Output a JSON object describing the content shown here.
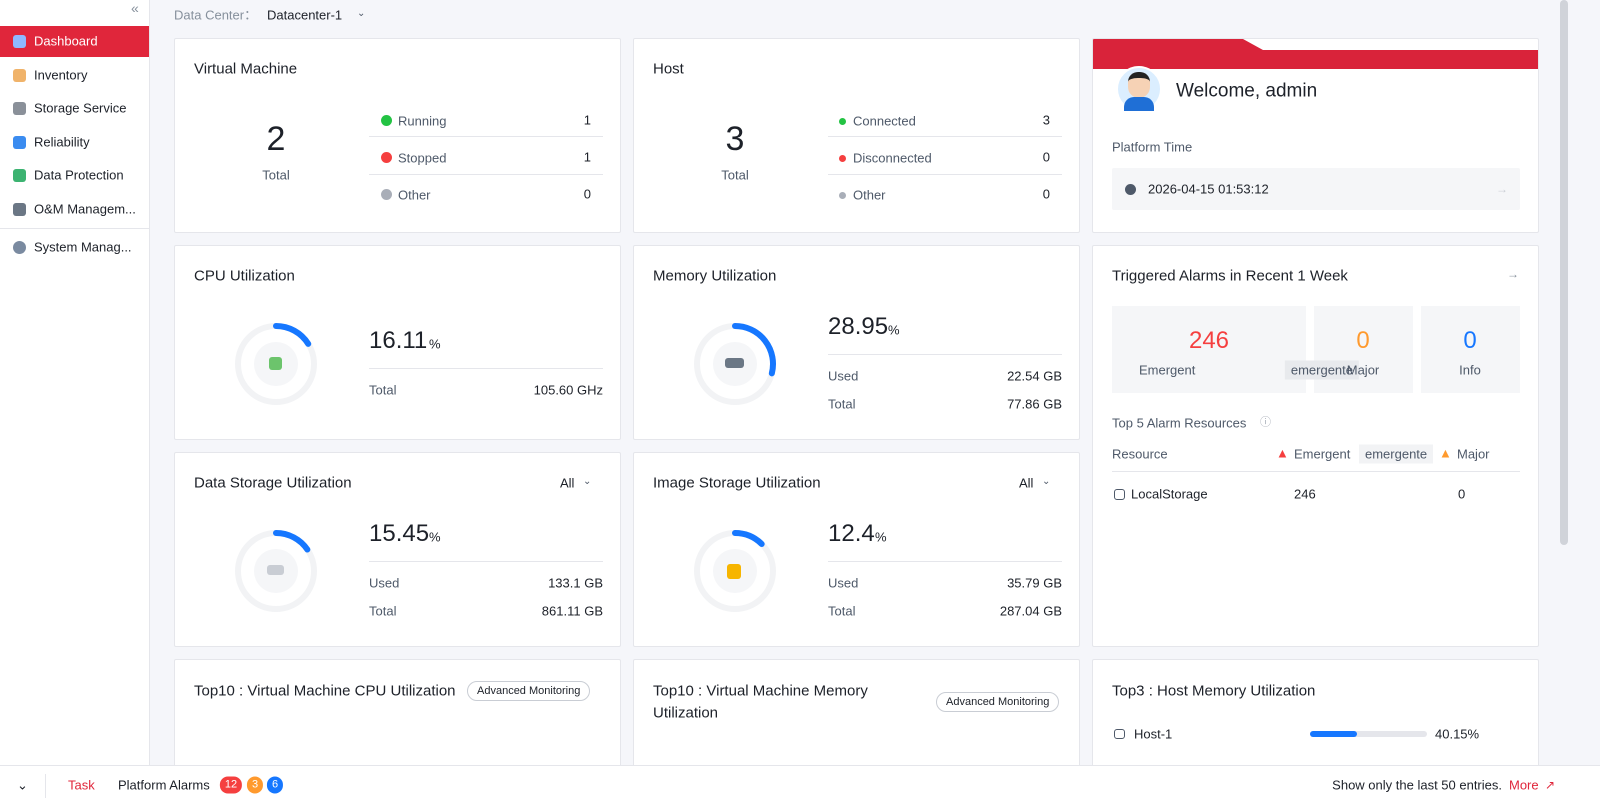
{
  "sidebar": {
    "items": [
      "Dashboard",
      "Inventory",
      "Storage Service",
      "Reliability",
      "Data Protection",
      "O&M Managem...",
      "System Manag..."
    ]
  },
  "header": {
    "label": "Data Center：",
    "value": "Datacenter-1"
  },
  "vm": {
    "title": "Virtual Machine",
    "total": 2,
    "total_label": "Total",
    "rows": [
      {
        "label": "Running",
        "value": 1
      },
      {
        "label": "Stopped",
        "value": 1
      },
      {
        "label": "Other",
        "value": 0
      }
    ]
  },
  "host": {
    "title": "Host",
    "total": 3,
    "total_label": "Total",
    "rows": [
      {
        "label": "Connected",
        "value": 3
      },
      {
        "label": "Disconnected",
        "value": 0
      },
      {
        "label": "Other",
        "value": 0
      }
    ]
  },
  "welcome": {
    "greeting": "Welcome, admin",
    "time_label": "Platform Time",
    "time": "2026-04-15 01:53:12"
  },
  "cpu": {
    "title": "CPU Utilization",
    "percent": 16.11,
    "unit": "%",
    "rows": [
      {
        "label": "Total",
        "value": "105.60 GHz"
      }
    ]
  },
  "memory": {
    "title": "Memory Utilization",
    "percent": 28.95,
    "unit": "%",
    "rows": [
      {
        "label": "Used",
        "value": "22.54 GB"
      },
      {
        "label": "Total",
        "value": "77.86 GB"
      }
    ]
  },
  "data_storage": {
    "title": "Data Storage Utilization",
    "filter": "All",
    "percent": 15.45,
    "unit": "%",
    "rows": [
      {
        "label": "Used",
        "value": "133.1 GB"
      },
      {
        "label": "Total",
        "value": "861.11 GB"
      }
    ]
  },
  "image_storage": {
    "title": "Image Storage Utilization",
    "filter": "All",
    "percent": 12.4,
    "unit": "%",
    "rows": [
      {
        "label": "Used",
        "value": "35.79 GB"
      },
      {
        "label": "Total",
        "value": "287.04 GB"
      }
    ]
  },
  "alarms": {
    "title": "Triggered Alarms in Recent 1 Week",
    "counts": [
      {
        "value": 246,
        "label": "Emergent",
        "tag": "emergente"
      },
      {
        "value": 0,
        "label": "Major"
      },
      {
        "value": 0,
        "label": "Info"
      }
    ],
    "top5_title": "Top 5 Alarm Resources",
    "columns": [
      "Resource",
      "Emergent",
      "emergente",
      "Major"
    ],
    "rows": [
      [
        "LocalStorage",
        246,
        0
      ]
    ]
  },
  "top10_cpu": {
    "title": "Top10 : Virtual Machine CPU Utilization",
    "badge": "Advanced Monitoring"
  },
  "top10_memory": {
    "title_lines": [
      "Top10 : Virtual Machine Memory",
      "Utilization"
    ],
    "badge": "Advanced Monitoring"
  },
  "top3": {
    "title": "Top3 : Host Memory Utilization",
    "hosts": [
      {
        "name": "Host-1",
        "value": 40.15,
        "value_label": "40.15%"
      }
    ]
  },
  "footer": {
    "task": "Task",
    "alarms": "Platform Alarms",
    "badges": [
      12,
      3,
      6
    ],
    "note": "Show only the last 50 entries.",
    "more": "More"
  }
}
